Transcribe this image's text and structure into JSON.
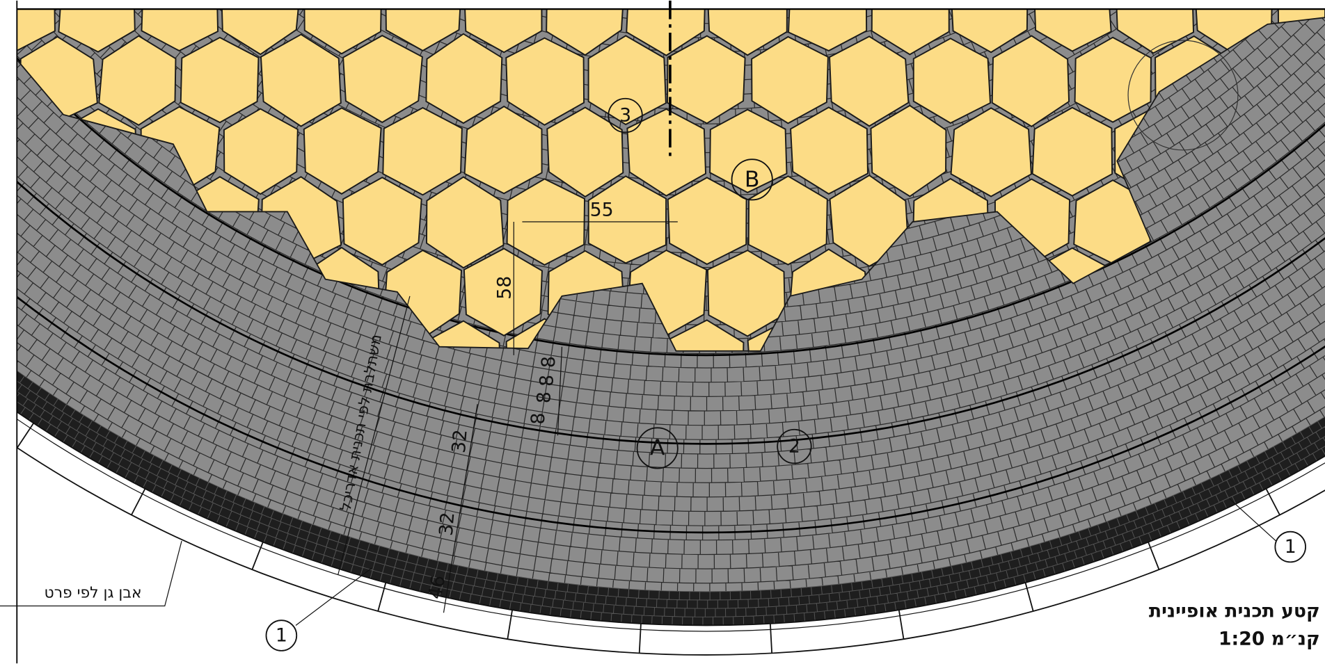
{
  "drawing": {
    "title": "קטע תכנית אופיינית",
    "scale": "קנ״מ 1:20",
    "notes": {
      "curb": "אבן גן לפי פרט",
      "paving": "משתלבת לפי תכנית אדריכל"
    },
    "dimensions": {
      "hex_width": "55",
      "hex_height": "58",
      "brick_1": "8",
      "brick_2": "8",
      "brick_3": "8",
      "brick_4": "8",
      "band_1": "32",
      "band_2": "32",
      "edge": "46"
    },
    "zones": {
      "a": "A",
      "b": "B"
    },
    "callouts": {
      "c1_left": "1",
      "c1_right": "1",
      "c2": "2",
      "c3": "3"
    }
  }
}
